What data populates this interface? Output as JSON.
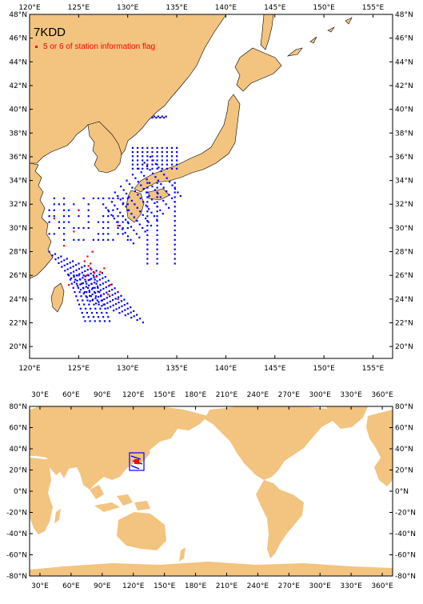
{
  "regional_map": {
    "title": "7KDD",
    "legend_label": "5 or 6 of station information flag",
    "lon_labels": [
      "120°E",
      "125°E",
      "130°E",
      "135°E",
      "140°E",
      "145°E",
      "150°E",
      "155°E"
    ],
    "lat_labels": [
      "20°N",
      "22°N",
      "24°N",
      "26°N",
      "28°N",
      "30°N",
      "32°N",
      "34°N",
      "36°N",
      "38°N",
      "40°N",
      "42°N",
      "44°N",
      "46°N",
      "48°N"
    ],
    "lon_range": [
      120,
      157
    ],
    "lat_range": [
      19,
      48
    ],
    "station_color": "#0000ff",
    "flag_color": "#ff0000",
    "land_color": "#f2c47f"
  },
  "global_map": {
    "lon_labels": [
      "30°E",
      "60°E",
      "90°E",
      "120°E",
      "150°E",
      "180°E",
      "210°E",
      "240°E",
      "270°E",
      "300°E",
      "330°E",
      "360°E"
    ],
    "lat_labels": [
      "80°N",
      "60°N",
      "40°N",
      "20°N",
      "0°N",
      "-20°N",
      "-40°N",
      "-60°N",
      "-80°N"
    ],
    "lon_range": [
      20,
      370
    ],
    "lat_range": [
      -80,
      80
    ]
  }
}
